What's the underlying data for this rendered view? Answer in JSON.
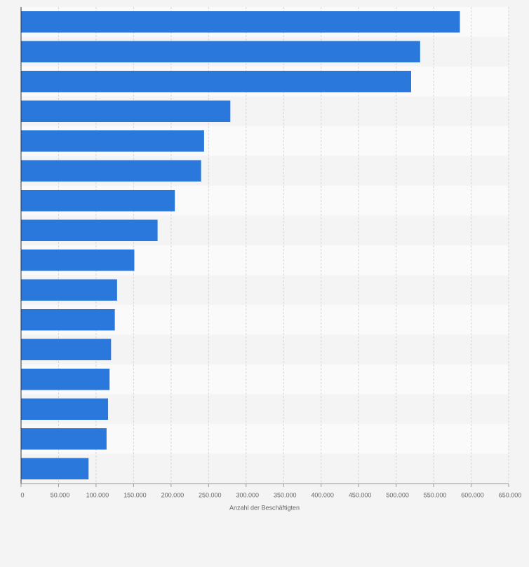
{
  "chart_data": {
    "type": "bar",
    "orientation": "horizontal",
    "categories": [
      null,
      null,
      null,
      null,
      null,
      null,
      null,
      null,
      null,
      null,
      null,
      null,
      null,
      null,
      null,
      null
    ],
    "values": [
      585000,
      532000,
      520000,
      279000,
      244000,
      240000,
      205000,
      182000,
      151000,
      128000,
      125000,
      120000,
      118000,
      116000,
      114000,
      90000
    ],
    "color": "#2a78dc",
    "x_label": "Anzahl der Beschäftigten",
    "xlim": [
      0,
      650000
    ],
    "xticks": [
      0,
      {
        "value": 50000,
        "label": "50.000"
      },
      {
        "value": 100000,
        "label": "100.000"
      },
      {
        "value": 150000,
        "label": "150.000"
      },
      {
        "value": 200000,
        "label": "200.000"
      },
      {
        "value": 250000,
        "label": "250.000"
      },
      {
        "value": 300000,
        "label": "300.000"
      },
      {
        "value": 350000,
        "label": "350.000"
      },
      {
        "value": 400000,
        "label": "400.000"
      },
      {
        "value": 450000,
        "label": "450.000"
      },
      {
        "value": 500000,
        "label": "500.000"
      },
      {
        "value": 550000,
        "label": "550.000"
      },
      {
        "value": 600000,
        "label": "600.000"
      },
      {
        "value": 650000,
        "label": "650.000"
      }
    ],
    "grid": true
  }
}
